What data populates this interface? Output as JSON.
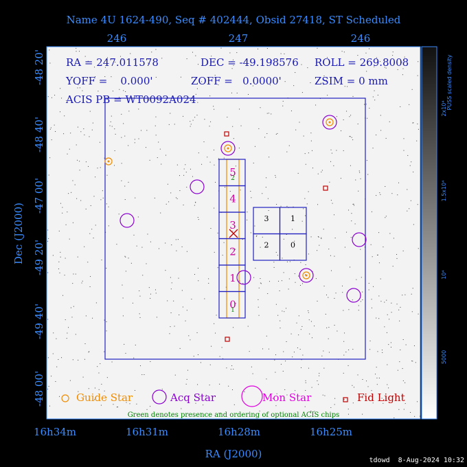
{
  "header": {
    "title": "Name 4U 1624-490, Seq # 402444, Obsid 27418, ST Scheduled"
  },
  "top_axis": {
    "ticks": [
      "246",
      "247",
      "246"
    ]
  },
  "left_axis": {
    "label": "Dec (J2000)",
    "ticks": [
      "-48 20'",
      "-48 40'",
      "-47 00'",
      "-49 20'",
      "-49 40'",
      "-48 00'"
    ]
  },
  "bottom_axis": {
    "label": "RA (J2000)",
    "ticks": [
      "16h34m",
      "16h31m",
      "16h28m",
      "16h25m"
    ]
  },
  "info": {
    "ra": "RA = 247.011578",
    "dec": "DEC = -49.198576",
    "roll": "ROLL = 269.8008",
    "yoff": "YOFF =    0.000'",
    "zoff": "ZOFF =   0.0000'",
    "zsim": "ZSIM = 0 mm",
    "acis": "ACIS PB = WT0092A024"
  },
  "acis_s": {
    "chips": [
      "5",
      "4",
      "3",
      "2",
      "1",
      "0"
    ],
    "optional": [
      "2",
      "1"
    ]
  },
  "acis_i": {
    "chips": [
      "3",
      "1",
      "2",
      "0"
    ]
  },
  "legend": {
    "guide": "Guide Star",
    "acq": "Acq Star",
    "mon": "Mon Star",
    "fid": "Fid Light",
    "note": "Green denotes presence and ordering of optional ACIS chips"
  },
  "colorbar": {
    "labels": [
      "2x10⁴",
      "1.5x10⁴",
      "10⁴",
      "5000"
    ],
    "title": "PUSS scaled density"
  },
  "footer": "tdowd  8-Aug-2024 10:32"
}
